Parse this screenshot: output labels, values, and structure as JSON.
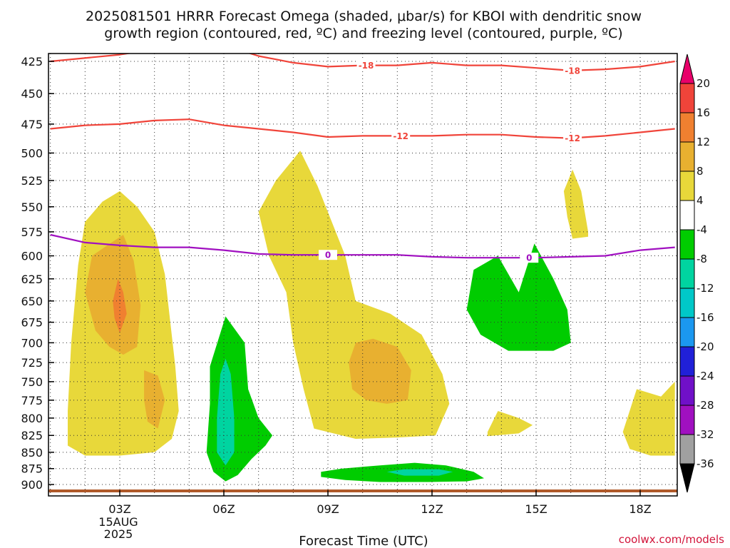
{
  "chart_data": {
    "type": "heatmap",
    "title_lines": [
      "2025081501 HRRR Forecast Omega (shaded, μbar/s) for KBOI with dendritic snow",
      "growth region (contoured, red, ºC) and freezing level (contoured, purple, ºC)"
    ],
    "xlabel": "Forecast Time (UTC)",
    "x_ticks": [
      {
        "label": "03Z",
        "hour": 3,
        "sub": [
          "15AUG",
          "2025"
        ]
      },
      {
        "label": "06Z",
        "hour": 6,
        "sub": []
      },
      {
        "label": "09Z",
        "hour": 9,
        "sub": []
      },
      {
        "label": "12Z",
        "hour": 12,
        "sub": []
      },
      {
        "label": "15Z",
        "hour": 15,
        "sub": []
      },
      {
        "label": "18Z",
        "hour": 18,
        "sub": []
      }
    ],
    "xlim": [
      1,
      19
    ],
    "y_ticks": [
      425,
      450,
      475,
      500,
      525,
      550,
      575,
      600,
      625,
      650,
      675,
      700,
      725,
      750,
      775,
      800,
      825,
      850,
      875,
      900
    ],
    "ylim": [
      415,
      920
    ],
    "y_scale": "log-pressure",
    "grid": true,
    "colorbar": {
      "labels": [
        "20",
        "16",
        "12",
        "8",
        "4",
        "-4",
        "-8",
        "-12",
        "-16",
        "-20",
        "-24",
        "-28",
        "-32",
        "-36"
      ],
      "colors": [
        "#e8006a",
        "#f0443a",
        "#f08030",
        "#e8b030",
        "#e8d83a",
        "#ffffff",
        "#00cc00",
        "#00d4a0",
        "#00c8c8",
        "#1b98f0",
        "#2020d8",
        "#7010c8",
        "#a010c0",
        "#a0a0a0",
        "#000000"
      ]
    },
    "omega_regions": [
      {
        "level": "4 to 8",
        "color": "#e8d83a",
        "points": [
          [
            1.5,
            840
          ],
          [
            1.5,
            790
          ],
          [
            1.6,
            700
          ],
          [
            1.8,
            610
          ],
          [
            2,
            565
          ],
          [
            2.5,
            545
          ],
          [
            3,
            535
          ],
          [
            3.5,
            550
          ],
          [
            4,
            575
          ],
          [
            4.3,
            620
          ],
          [
            4.6,
            730
          ],
          [
            4.7,
            790
          ],
          [
            4.5,
            830
          ],
          [
            4,
            850
          ],
          [
            3,
            855
          ],
          [
            2,
            855
          ]
        ]
      },
      {
        "level": "8 to 12",
        "color": "#e8b030",
        "points": [
          [
            2,
            640
          ],
          [
            2.2,
            600
          ],
          [
            2.6,
            590
          ],
          [
            3.1,
            578
          ],
          [
            3.4,
            605
          ],
          [
            3.6,
            655
          ],
          [
            3.5,
            705
          ],
          [
            3.1,
            715
          ],
          [
            2.7,
            705
          ],
          [
            2.3,
            685
          ]
        ]
      },
      {
        "level": "12 to 16",
        "color": "#f08030",
        "points": [
          [
            2.8,
            650
          ],
          [
            2.95,
            625
          ],
          [
            3.1,
            640
          ],
          [
            3.2,
            665
          ],
          [
            3,
            688
          ],
          [
            2.85,
            670
          ]
        ]
      },
      {
        "level": "8 to 12",
        "color": "#e8b030",
        "points": [
          [
            3.7,
            735
          ],
          [
            4.1,
            742
          ],
          [
            4.3,
            775
          ],
          [
            4.1,
            815
          ],
          [
            3.8,
            805
          ],
          [
            3.7,
            775
          ]
        ]
      },
      {
        "level": "4 to 8",
        "color": "#e8d83a",
        "points": [
          [
            7,
            555
          ],
          [
            7.5,
            525
          ],
          [
            8.2,
            498
          ],
          [
            8.7,
            530
          ],
          [
            9.5,
            600
          ],
          [
            9.8,
            650
          ],
          [
            10.8,
            665
          ],
          [
            11.7,
            690
          ],
          [
            12.3,
            740
          ],
          [
            12.5,
            780
          ],
          [
            12.1,
            825
          ],
          [
            11,
            828
          ],
          [
            9.8,
            830
          ],
          [
            8.6,
            815
          ],
          [
            8.3,
            760
          ],
          [
            8.0,
            700
          ],
          [
            7.8,
            640
          ],
          [
            7.3,
            600
          ]
        ]
      },
      {
        "level": "8 to 12",
        "color": "#e8b030",
        "points": [
          [
            9.6,
            725
          ],
          [
            9.8,
            700
          ],
          [
            10.3,
            695
          ],
          [
            11,
            705
          ],
          [
            11.4,
            735
          ],
          [
            11.3,
            775
          ],
          [
            10.7,
            780
          ],
          [
            10.1,
            775
          ],
          [
            9.7,
            760
          ]
        ]
      },
      {
        "level": "4 to 8",
        "color": "#e8d83a",
        "points": [
          [
            15.8,
            535
          ],
          [
            16.05,
            515
          ],
          [
            16.3,
            535
          ],
          [
            16.5,
            575
          ],
          [
            16.5,
            580
          ],
          [
            16.05,
            582
          ],
          [
            15.9,
            560
          ]
        ]
      },
      {
        "level": "4 to 8",
        "color": "#e8d83a",
        "points": [
          [
            13.6,
            820
          ],
          [
            13.9,
            790
          ],
          [
            14.5,
            800
          ],
          [
            14.9,
            810
          ],
          [
            14.5,
            822
          ],
          [
            13.6,
            826
          ]
        ]
      },
      {
        "level": "4 to 8",
        "color": "#e8d83a",
        "points": [
          [
            17.5,
            820
          ],
          [
            17.9,
            760
          ],
          [
            18.6,
            770
          ],
          [
            19,
            750
          ],
          [
            19,
            855
          ],
          [
            18.3,
            855
          ],
          [
            17.7,
            845
          ]
        ]
      },
      {
        "level": "-4 to -8",
        "color": "#00cc00",
        "points": [
          [
            5.6,
            780
          ],
          [
            5.6,
            730
          ],
          [
            6.05,
            668
          ],
          [
            6.6,
            700
          ],
          [
            6.7,
            760
          ],
          [
            7,
            800
          ],
          [
            7.4,
            825
          ],
          [
            7.2,
            840
          ],
          [
            6.8,
            860
          ],
          [
            6.4,
            885
          ],
          [
            6.05,
            895
          ],
          [
            5.7,
            880
          ],
          [
            5.5,
            850
          ]
        ]
      },
      {
        "level": "-8 to -12",
        "color": "#00d4a0",
        "points": [
          [
            5.8,
            800
          ],
          [
            5.9,
            740
          ],
          [
            6.05,
            720
          ],
          [
            6.2,
            740
          ],
          [
            6.3,
            800
          ],
          [
            6.3,
            850
          ],
          [
            6.05,
            870
          ],
          [
            5.8,
            850
          ]
        ]
      },
      {
        "level": "-4 to -8",
        "color": "#00cc00",
        "points": [
          [
            13.2,
            615
          ],
          [
            13.9,
            600
          ],
          [
            14.5,
            640
          ],
          [
            14.95,
            587
          ],
          [
            15.5,
            625
          ],
          [
            15.9,
            660
          ],
          [
            16.0,
            700
          ],
          [
            15.5,
            710
          ],
          [
            14.2,
            710
          ],
          [
            13.4,
            690
          ],
          [
            13.0,
            660
          ]
        ]
      },
      {
        "level": "-4 to -8",
        "color": "#00cc00",
        "points": [
          [
            8.8,
            880
          ],
          [
            9.4,
            875
          ],
          [
            10.5,
            870
          ],
          [
            11.5,
            866
          ],
          [
            12.4,
            870
          ],
          [
            13.2,
            880
          ],
          [
            13.5,
            890
          ],
          [
            13.0,
            895
          ],
          [
            11.9,
            896
          ],
          [
            10.5,
            896
          ],
          [
            9.5,
            893
          ],
          [
            8.8,
            888
          ]
        ]
      },
      {
        "level": "-8 to -12",
        "color": "#00d4a0",
        "points": [
          [
            10.7,
            880
          ],
          [
            11.2,
            876
          ],
          [
            12.2,
            876
          ],
          [
            12.6,
            880
          ],
          [
            12.2,
            886
          ],
          [
            11.2,
            886
          ]
        ]
      }
    ],
    "isotherms": [
      {
        "name": "dendritic snow growth region (-18 ºC)",
        "color": "#f0443a",
        "label": "-18",
        "label_x": [
          10.1,
          16.05
        ],
        "points": [
          [
            1,
            425
          ],
          [
            3,
            420
          ],
          [
            5,
            412
          ],
          [
            6,
            413
          ],
          [
            7,
            421
          ],
          [
            8,
            426
          ],
          [
            9,
            429
          ],
          [
            10,
            428
          ],
          [
            11,
            428
          ],
          [
            12,
            426
          ],
          [
            13,
            428
          ],
          [
            14,
            428
          ],
          [
            15,
            430
          ],
          [
            16,
            432
          ],
          [
            17,
            431
          ],
          [
            18,
            429
          ],
          [
            19,
            425
          ]
        ]
      },
      {
        "name": "dendritic snow growth region (-12 ºC)",
        "color": "#f0443a",
        "label": "-12",
        "label_x": [
          11.1,
          16.05
        ],
        "points": [
          [
            1,
            479
          ],
          [
            2,
            476
          ],
          [
            3,
            475
          ],
          [
            4,
            472
          ],
          [
            5,
            471
          ],
          [
            6,
            476
          ],
          [
            7,
            479
          ],
          [
            8,
            482
          ],
          [
            9,
            486
          ],
          [
            10,
            485
          ],
          [
            11,
            485
          ],
          [
            12,
            485
          ],
          [
            13,
            484
          ],
          [
            14,
            484
          ],
          [
            15,
            486
          ],
          [
            16,
            487
          ],
          [
            17,
            485
          ],
          [
            18,
            482
          ],
          [
            19,
            479
          ]
        ]
      },
      {
        "name": "freezing level (0 ºC)",
        "color": "#a010c0",
        "label": "0",
        "label_x": [
          9,
          14.8
        ],
        "points": [
          [
            1,
            578
          ],
          [
            2,
            586
          ],
          [
            3,
            589
          ],
          [
            4,
            591
          ],
          [
            5,
            591
          ],
          [
            6,
            594
          ],
          [
            7,
            598
          ],
          [
            8,
            599
          ],
          [
            9,
            599
          ],
          [
            10,
            599
          ],
          [
            11,
            599
          ],
          [
            12,
            601
          ],
          [
            13,
            602
          ],
          [
            14,
            602
          ],
          [
            15,
            602
          ],
          [
            16,
            601
          ],
          [
            17,
            600
          ],
          [
            18,
            594
          ],
          [
            19,
            591
          ]
        ]
      }
    ],
    "terrain_color": "#b05a2a"
  },
  "credit": "coolwx.com/models"
}
